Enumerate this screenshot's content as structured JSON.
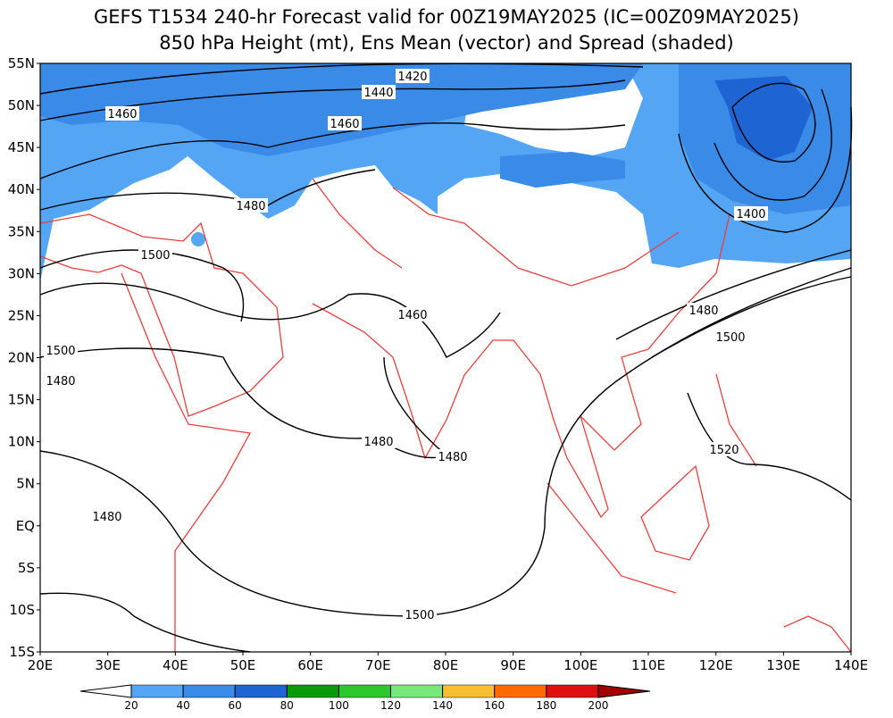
{
  "title": "GEFS T1534 240-hr Forecast valid for 00Z19MAY2025 (IC=00Z09MAY2025)",
  "subtitle": "850 hPa Height (mt), Ens Mean (vector) and Spread (shaded)",
  "lat_labels": [
    "55N",
    "50N",
    "45N",
    "40N",
    "35N",
    "30N",
    "25N",
    "20N",
    "15N",
    "10N",
    "5N",
    "EQ",
    "5S",
    "10S",
    "15S"
  ],
  "lon_labels": [
    "20E",
    "30E",
    "40E",
    "50E",
    "60E",
    "70E",
    "80E",
    "90E",
    "100E",
    "110E",
    "120E",
    "130E",
    "140E"
  ],
  "contour_labels": [
    "1420",
    "1440",
    "1460",
    "1460",
    "1480",
    "1500",
    "1460",
    "1480",
    "1500",
    "1400",
    "1500",
    "1480",
    "1480",
    "1480",
    "1480",
    "1520",
    "1500"
  ],
  "colorbar": {
    "ticks": [
      20,
      40,
      60,
      80,
      100,
      120,
      140,
      160,
      180,
      200
    ],
    "colors": [
      "#ffffff",
      "#55a5f5",
      "#3a8ae8",
      "#1e64d2",
      "#0a9a0a",
      "#2ec82e",
      "#78e878",
      "#f8c030",
      "#ff6a00",
      "#e01010",
      "#a00000"
    ]
  }
}
